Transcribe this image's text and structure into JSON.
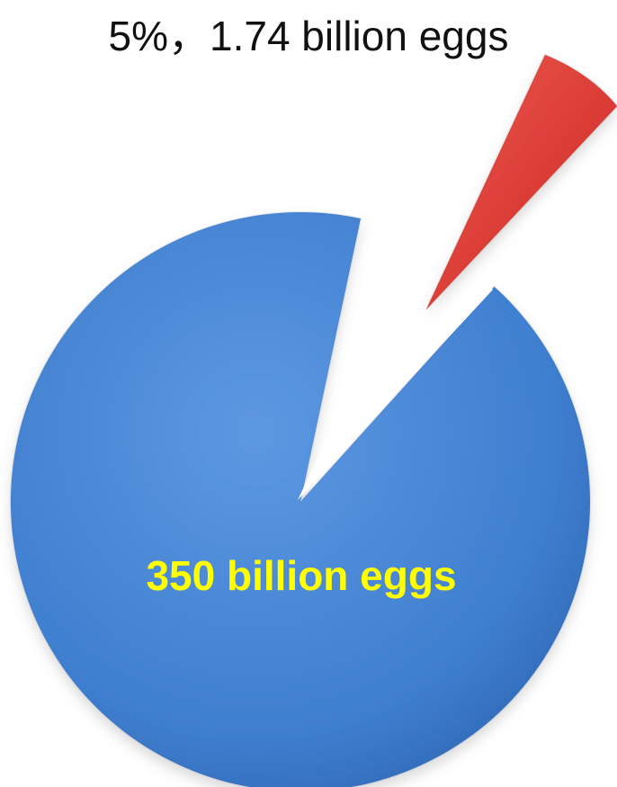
{
  "chart_data": {
    "type": "pie",
    "slices": [
      {
        "label": "350 billion eggs",
        "value": 95,
        "color": "#3f7fcf"
      },
      {
        "label": "5%，1.74 billion eggs",
        "value": 5,
        "color": "#d93a33"
      }
    ]
  },
  "labels": {
    "small_slice": "5%，1.74 billion eggs",
    "large_slice": "350 billion eggs"
  }
}
